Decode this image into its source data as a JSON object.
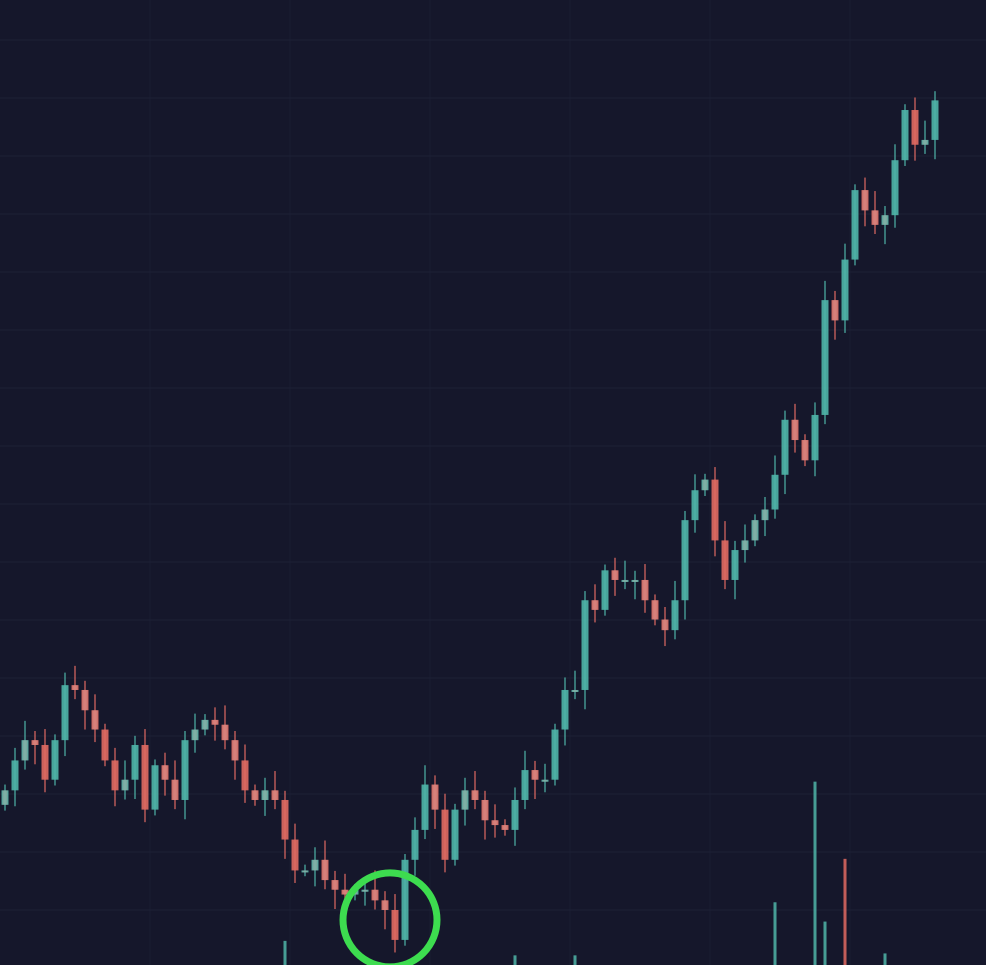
{
  "chart_data": {
    "type": "candlestick",
    "title": "",
    "xlabel": "",
    "ylabel": "",
    "ylim": [
      0,
      100
    ],
    "grid": true,
    "closes": [
      18.1,
      21.2,
      23.3,
      22.8,
      19.2,
      23.3,
      29.0,
      28.5,
      26.4,
      24.4,
      21.2,
      18.1,
      19.2,
      22.8,
      16.1,
      20.7,
      19.2,
      17.1,
      23.3,
      24.4,
      25.4,
      24.9,
      23.3,
      21.2,
      18.1,
      17.1,
      18.1,
      17.1,
      13.0,
      9.8,
      9.8,
      10.9,
      8.8,
      7.8,
      7.3,
      7.8,
      7.8,
      6.7,
      5.7,
      2.6,
      10.9,
      14.0,
      18.7,
      16.1,
      10.9,
      16.1,
      18.1,
      17.1,
      15.0,
      14.5,
      14.0,
      17.1,
      20.2,
      19.2,
      19.2,
      24.4,
      28.5,
      28.5,
      37.8,
      36.8,
      40.9,
      39.9,
      39.9,
      39.9,
      37.8,
      35.8,
      34.7,
      37.8,
      46.1,
      49.2,
      50.3,
      44.0,
      39.9,
      43.0,
      44.0,
      46.1,
      47.2,
      50.8,
      56.5,
      54.4,
      52.3,
      57.0,
      68.9,
      66.8,
      73.1,
      80.3,
      78.2,
      76.7,
      77.7,
      83.4,
      88.6,
      85.0,
      85.5,
      89.6
    ],
    "volume": [
      {
        "index": 28,
        "value": 2.5,
        "dir": "up"
      },
      {
        "index": 51,
        "value": 1.0,
        "dir": "up"
      },
      {
        "index": 57,
        "value": 1.0,
        "dir": "up"
      },
      {
        "index": 77,
        "value": 6.5,
        "dir": "up"
      },
      {
        "index": 81,
        "value": 19.0,
        "dir": "up"
      },
      {
        "index": 82,
        "value": 4.5,
        "dir": "up"
      },
      {
        "index": 84,
        "value": 11.0,
        "dir": "down"
      },
      {
        "index": 88,
        "value": 1.2,
        "dir": "up"
      }
    ],
    "highlight": {
      "index": 39,
      "shape": "circle",
      "color": "#3ddc4f"
    },
    "colors": {
      "background": "#15172b",
      "up": "#4fb5a8",
      "down": "#e06a62",
      "grid": "#1d2036"
    }
  }
}
